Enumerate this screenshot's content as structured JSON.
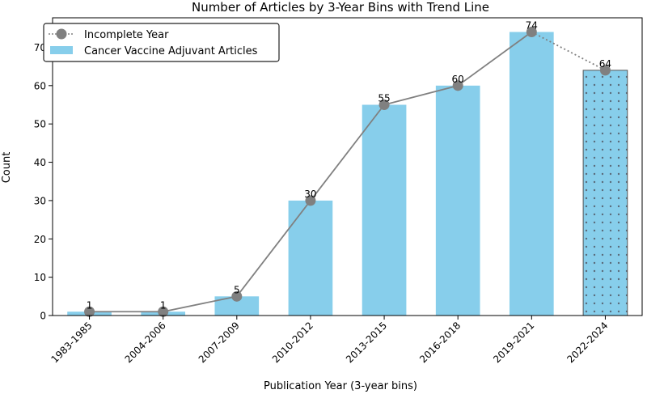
{
  "chart_data": {
    "type": "bar",
    "title": "Number of Articles by 3-Year Bins with Trend Line",
    "xlabel": "Publication Year (3-year bins)",
    "ylabel": "Count",
    "categories": [
      "1983-1985",
      "2004-2006",
      "2007-2009",
      "2010-2012",
      "2013-2015",
      "2016-2018",
      "2019-2021",
      "2022-2024"
    ],
    "values": [
      1,
      1,
      5,
      30,
      55,
      60,
      74,
      64
    ],
    "incomplete_index": 7,
    "ylim": [
      0,
      77.7
    ],
    "yticks": [
      0,
      10,
      20,
      30,
      40,
      50,
      60,
      70
    ],
    "grid": false,
    "legend_position": "top-left",
    "legend": [
      {
        "label": "Incomplete Year",
        "kind": "marker-line"
      },
      {
        "label": "Cancer Vaccine Adjuvant Articles",
        "kind": "bar"
      }
    ],
    "colors": {
      "bar": "#87ceeb",
      "trend": "#808080",
      "edge": "#555555"
    }
  }
}
